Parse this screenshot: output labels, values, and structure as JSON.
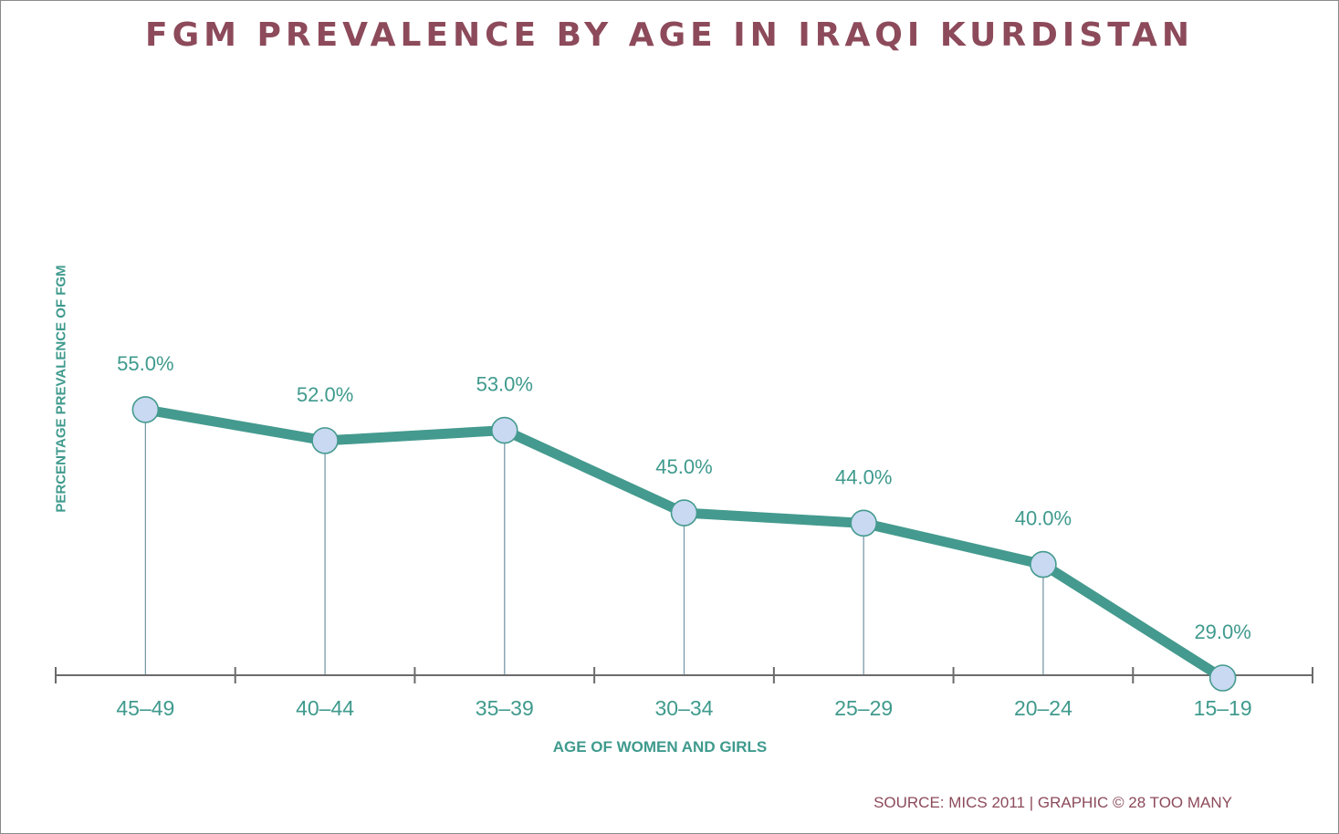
{
  "chart_data": {
    "type": "line",
    "title": "FGM PREVALENCE BY AGE IN IRAQI KURDISTAN",
    "xlabel": "AGE OF WOMEN AND GIRLS",
    "ylabel": "PERCENTAGE PREVALENCE OF FGM",
    "categories": [
      "45–49",
      "40–44",
      "35–39",
      "30–34",
      "25–29",
      "20–24",
      "15–19"
    ],
    "values": [
      55.0,
      52.0,
      53.0,
      45.0,
      44.0,
      40.0,
      29.0
    ],
    "data_labels": [
      "55.0%",
      "52.0%",
      "53.0%",
      "45.0%",
      "44.0%",
      "40.0%",
      "29.0%"
    ],
    "ylim": [
      0,
      100
    ],
    "grid": false,
    "drop_lines": true,
    "source": "SOURCE: MICS 2011 | GRAPHIC © 28 TOO MANY"
  },
  "colors": {
    "title": "#8c4a5a",
    "line": "#449a8e",
    "marker_fill": "#c9d9f2",
    "marker_stroke": "#449a8e",
    "axis": "#6b6b6b",
    "drop_line": "#7a9aa8",
    "text": "#3f9a8d"
  }
}
